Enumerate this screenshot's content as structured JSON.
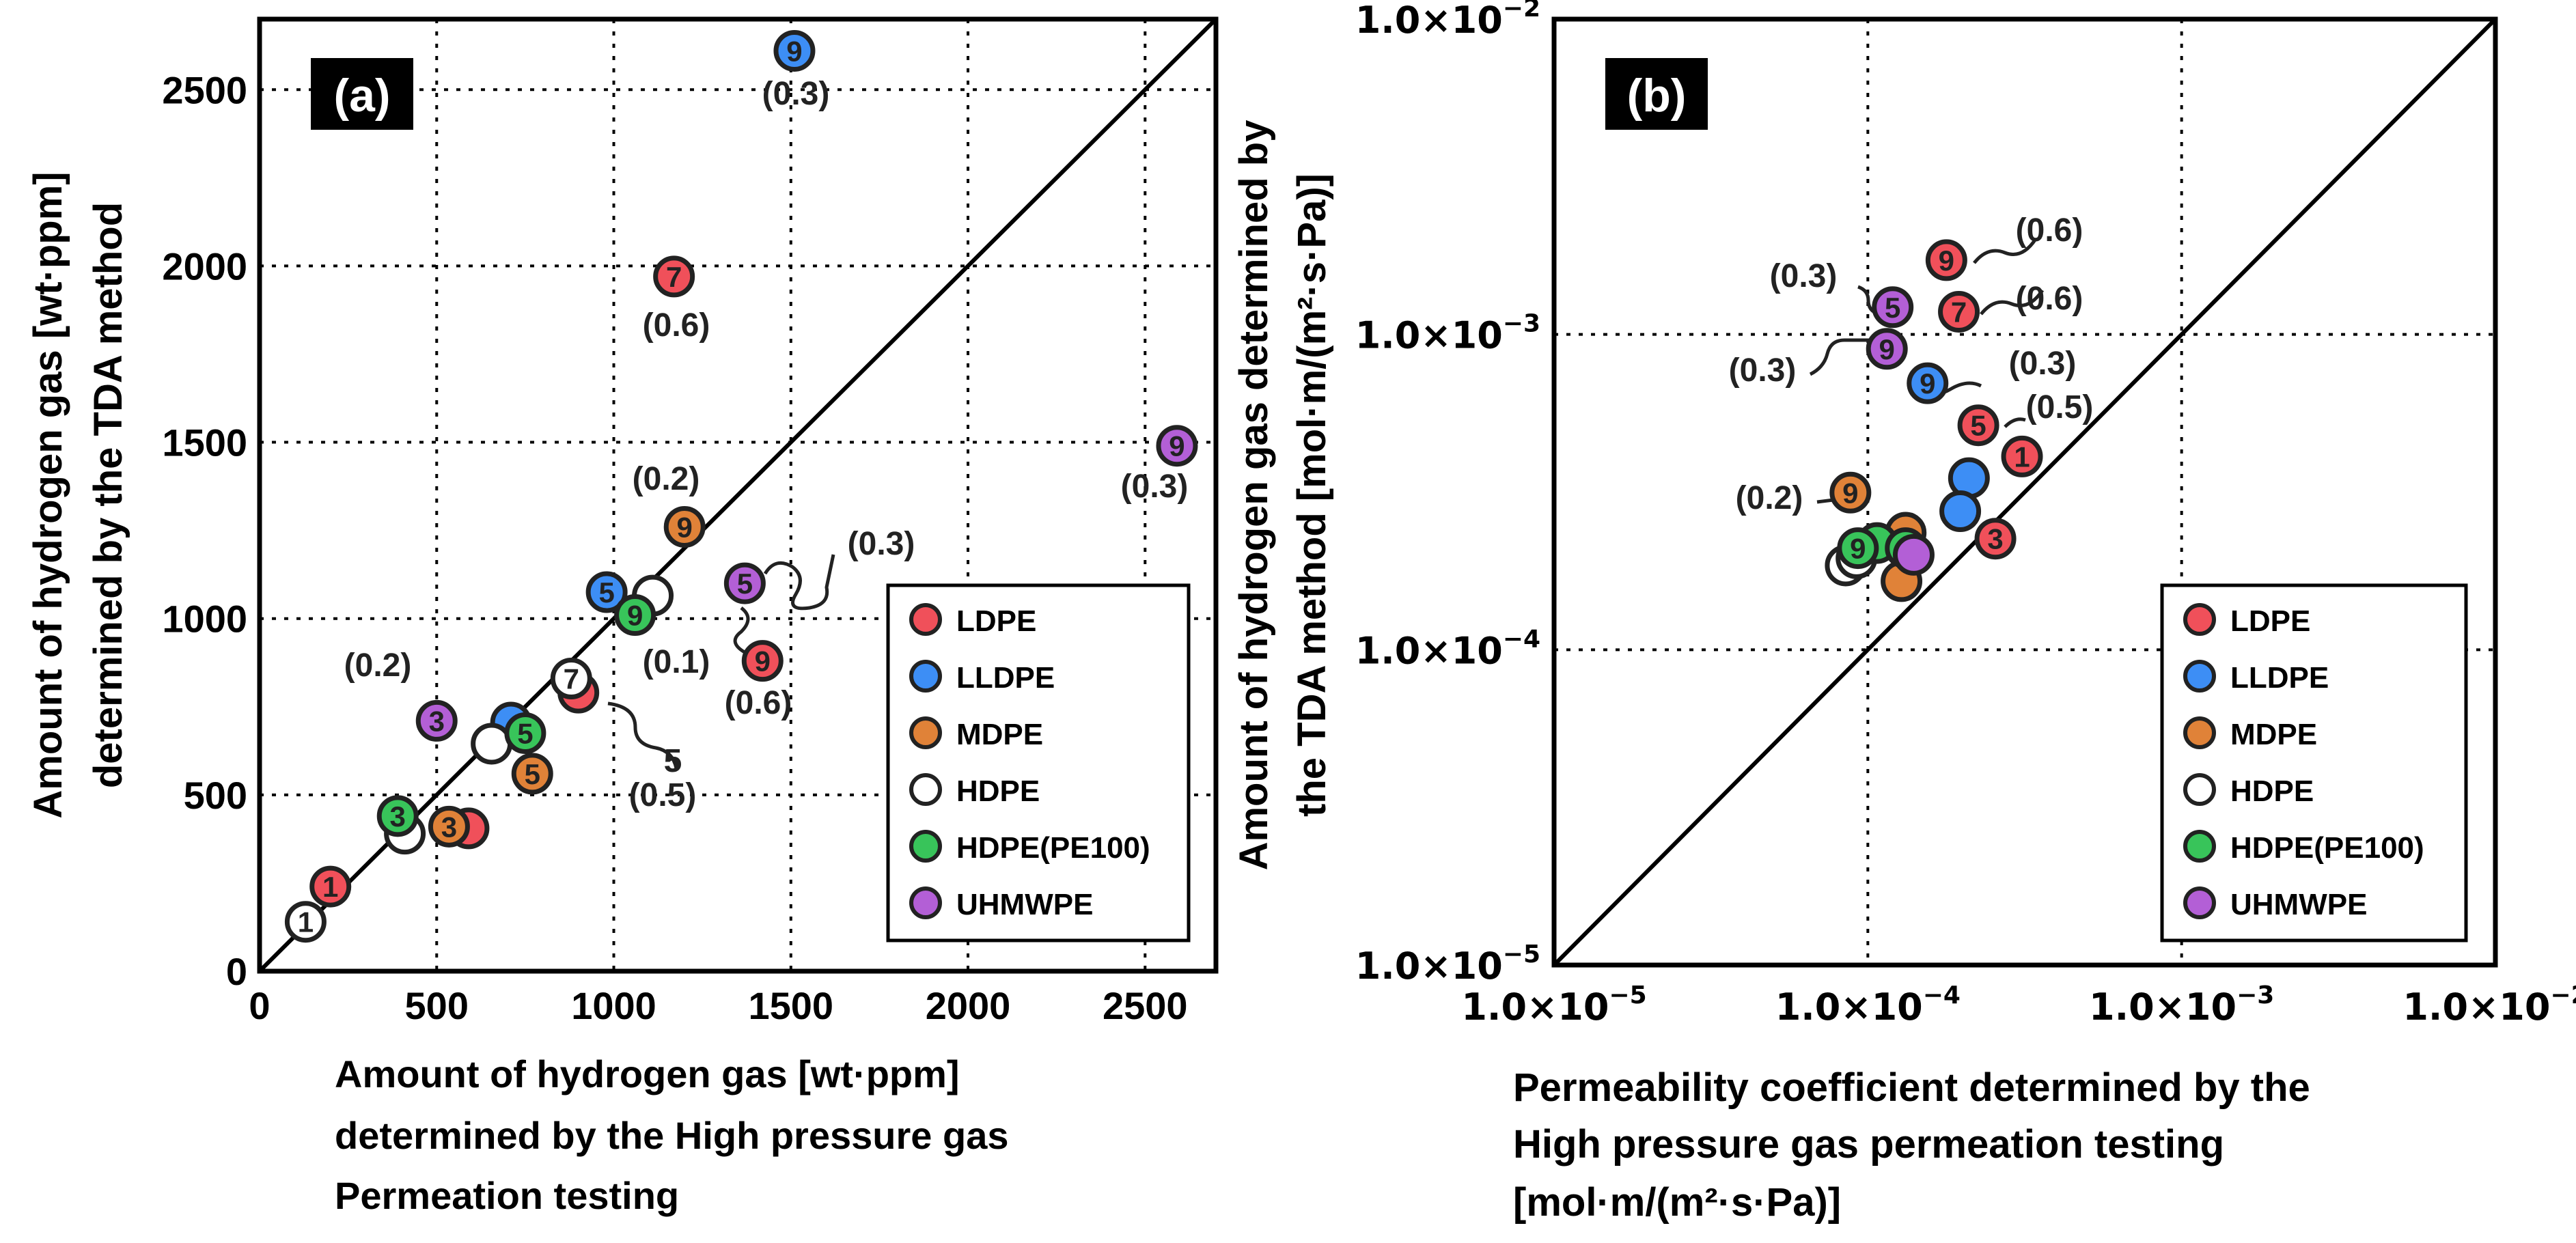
{
  "chart_data": [
    {
      "type": "scatter",
      "panel_label": "(a)",
      "xlabel_lines": [
        "Amount of hydrogen gas [wt·ppm]",
        "determined by the High pressure gas",
        "Permeation testing"
      ],
      "ylabel_lines": [
        "Amount of hydrogen gas [wt·ppm]",
        "determined by the TDA method"
      ],
      "xlim": [
        0,
        2700
      ],
      "ylim": [
        0,
        2700
      ],
      "xticks": [
        0,
        500,
        1000,
        1500,
        2000,
        2500
      ],
      "yticks": [
        0,
        500,
        1000,
        1500,
        2000,
        2500
      ],
      "xtick_labels": [
        "0",
        "500",
        "1000",
        "1500",
        "2000",
        "2500"
      ],
      "ytick_labels": [
        "0",
        "500",
        "1000",
        "1500",
        "2000",
        "2500"
      ],
      "grid": true,
      "reference_line": "y = x",
      "legend_position": "bottom-right",
      "series": [
        {
          "name": "LDPE",
          "color": "#f0505a",
          "points": [
            {
              "x": 200,
              "y": 240,
              "label": "1"
            },
            {
              "x": 590,
              "y": 405,
              "label": ""
            },
            {
              "x": 900,
              "y": 790,
              "label": ""
            },
            {
              "x": 1170,
              "y": 1970,
              "label": "7"
            },
            {
              "x": 1420,
              "y": 880,
              "label": "9"
            }
          ]
        },
        {
          "name": "LLDPE",
          "color": "#3d8ef5",
          "points": [
            {
              "x": 710,
              "y": 705,
              "label": ""
            },
            {
              "x": 980,
              "y": 1075,
              "label": "5"
            },
            {
              "x": 1510,
              "y": 2610,
              "label": "9"
            }
          ]
        },
        {
          "name": "MDPE",
          "color": "#e08238",
          "points": [
            {
              "x": 535,
              "y": 410,
              "label": "3"
            },
            {
              "x": 770,
              "y": 560,
              "label": "5"
            },
            {
              "x": 1200,
              "y": 1260,
              "label": "9"
            }
          ]
        },
        {
          "name": "HDPE",
          "color": "#ffffff",
          "points": [
            {
              "x": 130,
              "y": 140,
              "label": "1"
            },
            {
              "x": 410,
              "y": 390,
              "label": ""
            },
            {
              "x": 655,
              "y": 645,
              "label": ""
            },
            {
              "x": 880,
              "y": 830,
              "label": "7"
            },
            {
              "x": 1110,
              "y": 1065,
              "label": ""
            }
          ]
        },
        {
          "name": "HDPE(PE100)",
          "color": "#38c45a",
          "points": [
            {
              "x": 390,
              "y": 440,
              "label": "3"
            },
            {
              "x": 750,
              "y": 675,
              "label": "5"
            },
            {
              "x": 1060,
              "y": 1010,
              "label": "9"
            }
          ]
        },
        {
          "name": "UHMWPE",
          "color": "#b35fd6",
          "points": [
            {
              "x": 500,
              "y": 710,
              "label": "3"
            },
            {
              "x": 1370,
              "y": 1100,
              "label": "5"
            },
            {
              "x": 2590,
              "y": 1490,
              "label": "9"
            }
          ]
        }
      ],
      "annotations": [
        "(0.3)",
        "(0.6)",
        "(0.2)",
        "(0.3)",
        "(0.1)",
        "(0.6)",
        "(0.3)",
        "(0.2)",
        "5",
        "(0.5)"
      ]
    },
    {
      "type": "scatter",
      "panel_label": "(b)",
      "xscale": "log",
      "yscale": "log",
      "xlabel_lines": [
        "Permeability coefficient determined by the",
        "High pressure gas permeation testing",
        "[mol·m/(m²·s·Pa)]"
      ],
      "ylabel_lines": [
        "Amount of hydrogen gas determined by",
        "the TDA method  [mol·m/(m²·s·Pa)]"
      ],
      "xlim": [
        1e-05,
        0.01
      ],
      "ylim": [
        1e-05,
        0.01
      ],
      "tick_mantissa": "1.0×10",
      "tick_exponents": [
        "−5",
        "−4",
        "−3",
        "−2"
      ],
      "grid": true,
      "reference_line": "y = x",
      "legend_position": "bottom-right",
      "series": [
        {
          "name": "LDPE",
          "color": "#f0505a",
          "points": [
            {
              "x": 0.00031,
              "y": 0.00041,
              "label": "1"
            },
            {
              "x": 0.000255,
              "y": 0.000225,
              "label": "3"
            },
            {
              "x": 0.000225,
              "y": 0.000515,
              "label": "5"
            },
            {
              "x": 0.000195,
              "y": 0.00118,
              "label": "7"
            },
            {
              "x": 0.000178,
              "y": 0.00172,
              "label": "9"
            }
          ]
        },
        {
          "name": "LLDPE",
          "color": "#3d8ef5",
          "points": [
            {
              "x": 0.00021,
              "y": 0.00035,
              "label": ""
            },
            {
              "x": 0.000197,
              "y": 0.000275,
              "label": ""
            },
            {
              "x": 0.000155,
              "y": 0.0007,
              "label": "9"
            }
          ]
        },
        {
          "name": "MDPE",
          "color": "#e08238",
          "points": [
            {
              "x": 8.8e-05,
              "y": 0.000315,
              "label": "9"
            },
            {
              "x": 0.000132,
              "y": 0.000235,
              "label": ""
            },
            {
              "x": 0.000128,
              "y": 0.000165,
              "label": ""
            }
          ]
        },
        {
          "name": "HDPE",
          "color": "#ffffff",
          "points": [
            {
              "x": 8.5e-05,
              "y": 0.000185,
              "label": ""
            },
            {
              "x": 9.2e-05,
              "y": 0.000195,
              "label": ""
            }
          ]
        },
        {
          "name": "HDPE(PE100)",
          "color": "#38c45a",
          "points": [
            {
              "x": 0.000107,
              "y": 0.000218,
              "label": ""
            },
            {
              "x": 9.3e-05,
              "y": 0.00021,
              "label": "9"
            },
            {
              "x": 0.000132,
              "y": 0.00021,
              "label": ""
            }
          ]
        },
        {
          "name": "UHMWPE",
          "color": "#b35fd6",
          "points": [
            {
              "x": 0.00012,
              "y": 0.00122,
              "label": "5"
            },
            {
              "x": 0.000115,
              "y": 0.0009,
              "label": "9"
            },
            {
              "x": 0.00014,
              "y": 0.0002,
              "label": ""
            }
          ]
        }
      ],
      "annotations": [
        "(0.6)",
        "(0.3)",
        "(0.6)",
        "(0.3)",
        "(0.3)",
        "(0.5)",
        "(0.2)"
      ]
    }
  ]
}
